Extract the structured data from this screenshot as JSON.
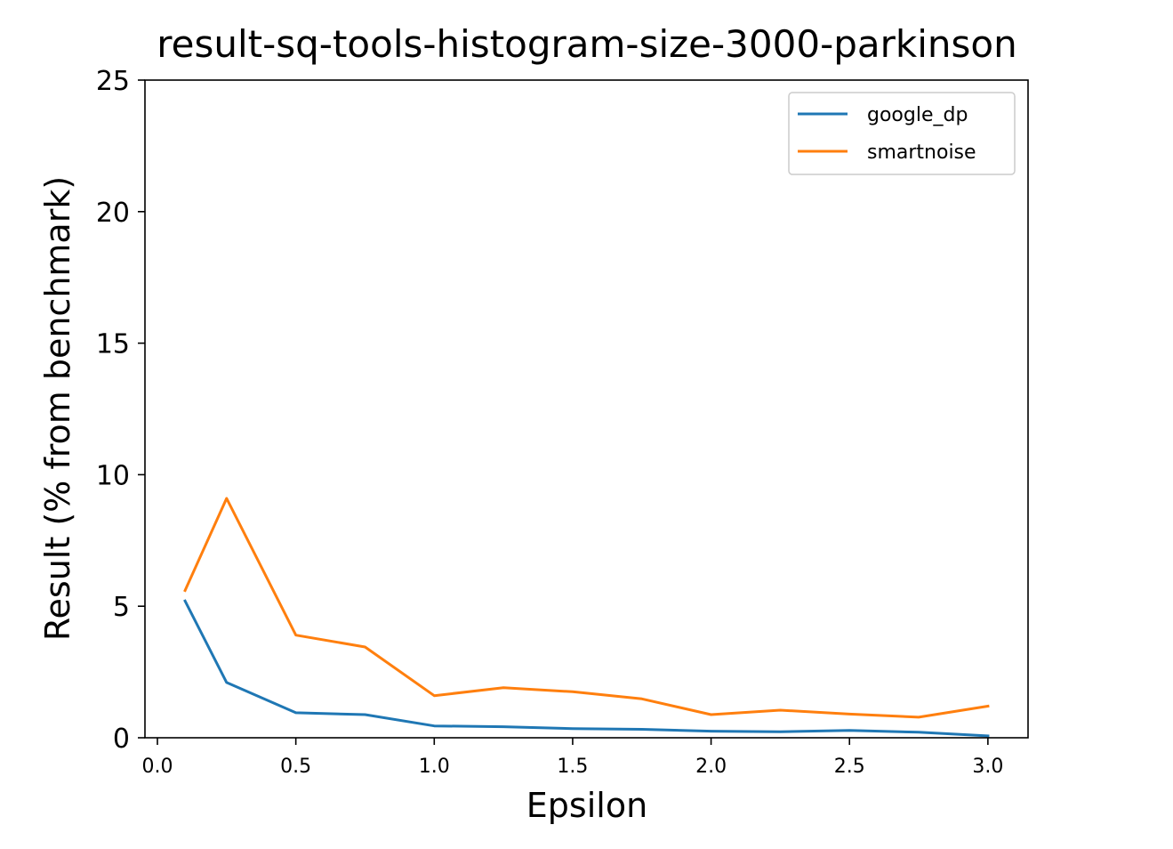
{
  "chart_data": {
    "type": "line",
    "title": "result-sq-tools-histogram-size-3000-parkinson",
    "xlabel": "Epsilon",
    "ylabel": "Result (% from benchmark)",
    "xlim": [
      -0.045,
      3.145
    ],
    "ylim": [
      0,
      25
    ],
    "xticks": [
      0.0,
      0.5,
      1.0,
      1.5,
      2.0,
      2.5,
      3.0
    ],
    "xtick_labels": [
      "0.0",
      "0.5",
      "1.0",
      "1.5",
      "2.0",
      "2.5",
      "3.0"
    ],
    "yticks": [
      0,
      5,
      10,
      15,
      20,
      25
    ],
    "ytick_labels": [
      "0",
      "5",
      "10",
      "15",
      "20",
      "25"
    ],
    "grid": false,
    "legend_position": "upper right",
    "x": [
      0.1,
      0.25,
      0.5,
      0.75,
      1.0,
      1.25,
      1.5,
      1.75,
      2.0,
      2.25,
      2.5,
      2.75,
      3.0
    ],
    "series": [
      {
        "name": "google_dp",
        "color": "#1f77b4",
        "values": [
          5.2,
          2.1,
          0.95,
          0.88,
          0.45,
          0.42,
          0.35,
          0.32,
          0.25,
          0.23,
          0.28,
          0.21,
          0.07
        ]
      },
      {
        "name": "smartnoise",
        "color": "#ff7f0e",
        "values": [
          5.6,
          9.1,
          3.9,
          3.45,
          1.6,
          1.9,
          1.75,
          1.48,
          0.88,
          1.05,
          0.9,
          0.78,
          1.2
        ]
      }
    ]
  }
}
